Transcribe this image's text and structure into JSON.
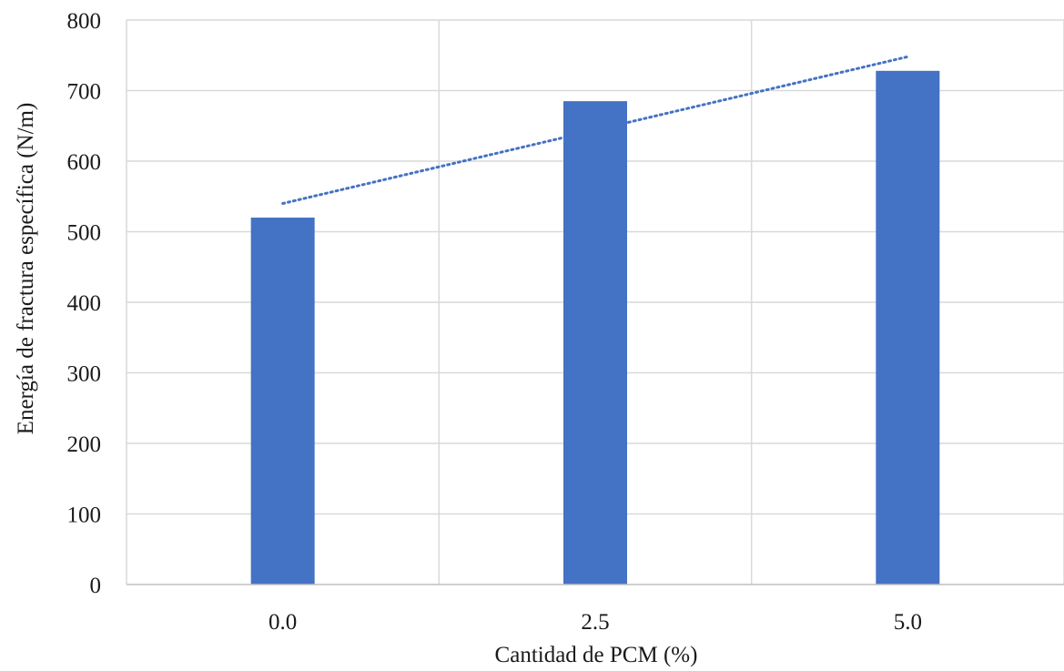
{
  "chart_data": {
    "type": "bar",
    "title": "",
    "xlabel": "Cantidad de PCM (%)",
    "ylabel": "Energía de fractura específica (N/m)",
    "categories": [
      "0.0",
      "2.5",
      "5.0"
    ],
    "series": [
      {
        "values": [
          520,
          685,
          728
        ]
      }
    ],
    "trendline": {
      "type": "linear",
      "style": "dotted",
      "start_value": 540,
      "end_value": 748
    },
    "ylim": [
      0,
      800
    ],
    "yticks": [
      "0",
      "100",
      "200",
      "300",
      "400",
      "500",
      "600",
      "700",
      "800"
    ],
    "grid": true,
    "legend": "none",
    "colors": {
      "bar": "#4472C4",
      "trendline": "#4472C4",
      "grid": "#d9d9d9",
      "axis": "#bfbfbf"
    }
  }
}
